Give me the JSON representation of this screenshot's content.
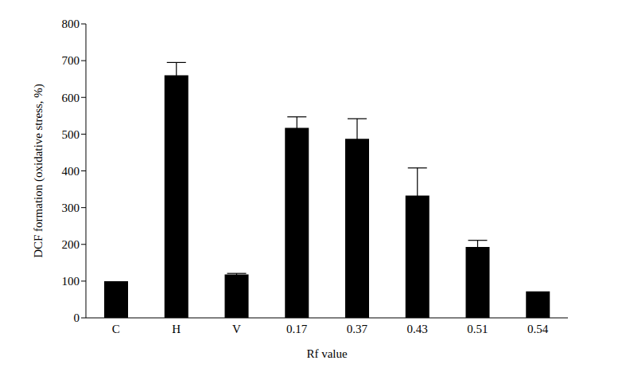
{
  "chart_data": {
    "type": "bar",
    "x_label": "Rf value",
    "y_label": "DCF formation (oxidative stress, %)",
    "categories": [
      "C",
      "H",
      "V",
      "0.17",
      "0.37",
      "0.43",
      "0.51",
      "0.54"
    ],
    "values": [
      100,
      660,
      118,
      517,
      487,
      333,
      193,
      72
    ],
    "errors": [
      0,
      35,
      3,
      30,
      55,
      75,
      18,
      0
    ],
    "color": "#000000",
    "ylim": [
      0,
      800
    ],
    "yticks": [
      0,
      100,
      200,
      300,
      400,
      500,
      600,
      700,
      800
    ],
    "grid": false
  }
}
